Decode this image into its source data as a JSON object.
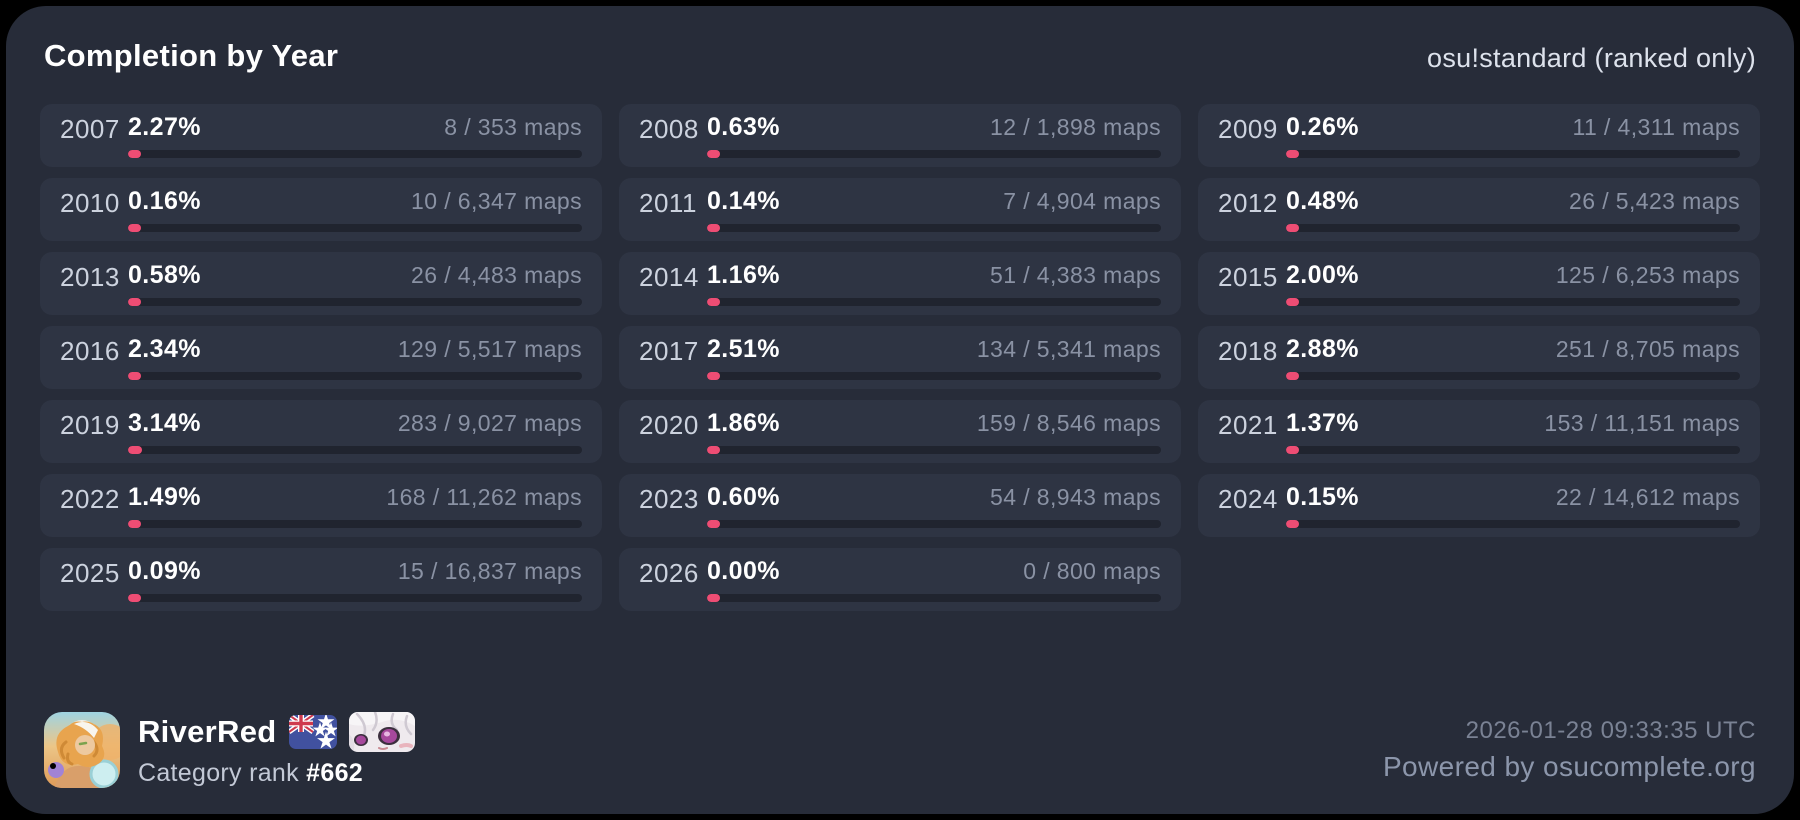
{
  "header": {
    "title": "Completion by Year",
    "mode_label": "osu!standard (ranked only)"
  },
  "colors": {
    "accent_pink": "#ee4d74",
    "container_bg": "#272c39",
    "card_bg": "#2e3443",
    "track_bg": "#20242f"
  },
  "cards": [
    {
      "year": "2007",
      "percent": "2.27%",
      "percent_value": 2.27,
      "maps": "8 / 353 maps"
    },
    {
      "year": "2008",
      "percent": "0.63%",
      "percent_value": 0.63,
      "maps": "12 / 1,898 maps"
    },
    {
      "year": "2009",
      "percent": "0.26%",
      "percent_value": 0.26,
      "maps": "11 / 4,311 maps"
    },
    {
      "year": "2010",
      "percent": "0.16%",
      "percent_value": 0.16,
      "maps": "10 / 6,347 maps"
    },
    {
      "year": "2011",
      "percent": "0.14%",
      "percent_value": 0.14,
      "maps": "7 / 4,904 maps"
    },
    {
      "year": "2012",
      "percent": "0.48%",
      "percent_value": 0.48,
      "maps": "26 / 5,423 maps"
    },
    {
      "year": "2013",
      "percent": "0.58%",
      "percent_value": 0.58,
      "maps": "26 / 4,483 maps"
    },
    {
      "year": "2014",
      "percent": "1.16%",
      "percent_value": 1.16,
      "maps": "51 / 4,383 maps"
    },
    {
      "year": "2015",
      "percent": "2.00%",
      "percent_value": 2.0,
      "maps": "125 / 6,253 maps"
    },
    {
      "year": "2016",
      "percent": "2.34%",
      "percent_value": 2.34,
      "maps": "129 / 5,517 maps"
    },
    {
      "year": "2017",
      "percent": "2.51%",
      "percent_value": 2.51,
      "maps": "134 / 5,341 maps"
    },
    {
      "year": "2018",
      "percent": "2.88%",
      "percent_value": 2.88,
      "maps": "251 / 8,705 maps"
    },
    {
      "year": "2019",
      "percent": "3.14%",
      "percent_value": 3.14,
      "maps": "283 / 9,027 maps"
    },
    {
      "year": "2020",
      "percent": "1.86%",
      "percent_value": 1.86,
      "maps": "159 / 8,546 maps"
    },
    {
      "year": "2021",
      "percent": "1.37%",
      "percent_value": 1.37,
      "maps": "153 / 11,151 maps"
    },
    {
      "year": "2022",
      "percent": "1.49%",
      "percent_value": 1.49,
      "maps": "168 / 11,262 maps"
    },
    {
      "year": "2023",
      "percent": "0.60%",
      "percent_value": 0.6,
      "maps": "54 / 8,943 maps"
    },
    {
      "year": "2024",
      "percent": "0.15%",
      "percent_value": 0.15,
      "maps": "22 / 14,612 maps"
    },
    {
      "year": "2025",
      "percent": "0.09%",
      "percent_value": 0.09,
      "maps": "15 / 16,837 maps"
    },
    {
      "year": "2026",
      "percent": "0.00%",
      "percent_value": 0.0,
      "maps": "0 / 800 maps"
    }
  ],
  "footer": {
    "username": "RiverRed",
    "flag_name": "new-zealand-flag",
    "category_rank_label": "Category rank",
    "category_rank_value": "#662",
    "timestamp": "2026-01-28 09:33:35 UTC",
    "powered_by": "Powered by osucomplete.org"
  }
}
